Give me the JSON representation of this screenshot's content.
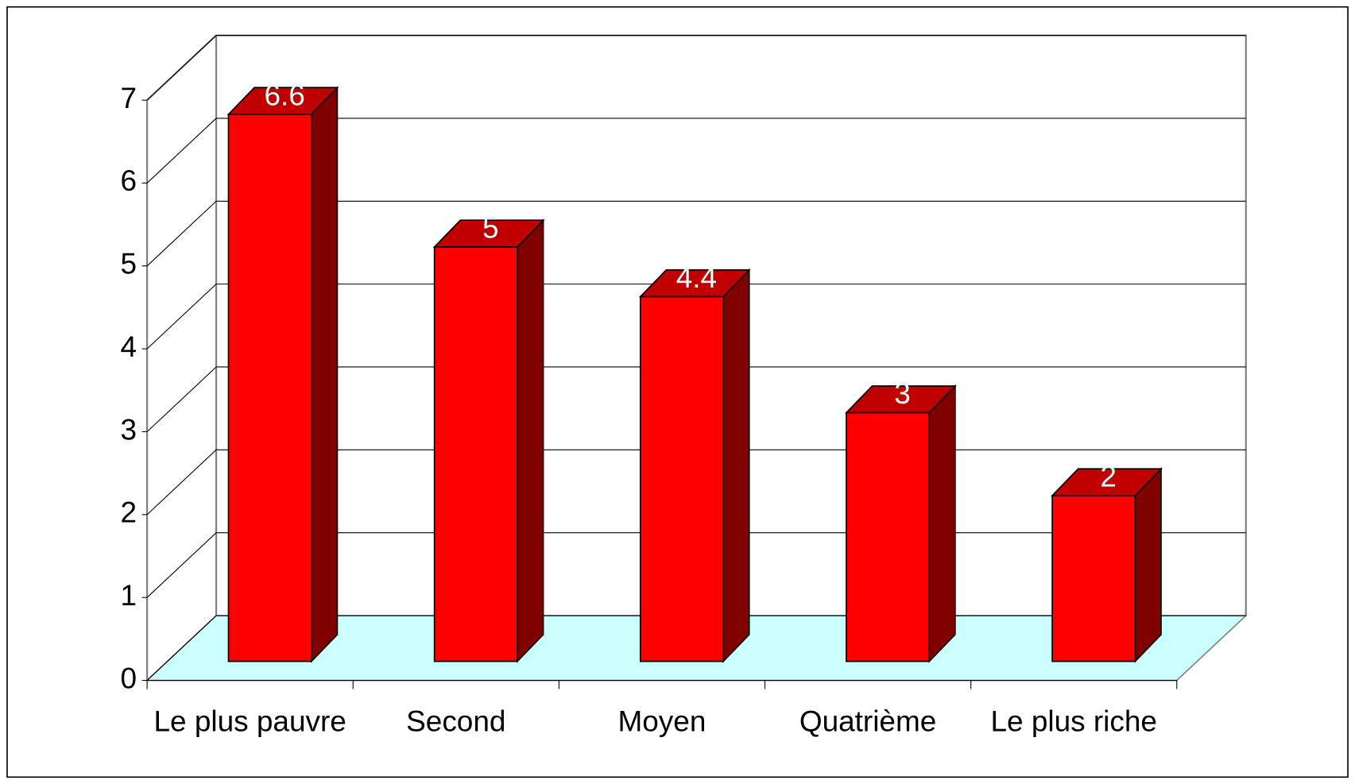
{
  "chart_data": {
    "type": "bar",
    "categories": [
      "Le plus pauvre",
      "Second",
      "Moyen",
      "Quatrième",
      "Le plus riche"
    ],
    "values": [
      6.6,
      5,
      4.4,
      3,
      2
    ],
    "color": "#ff0000",
    "ylim": [
      0,
      7
    ],
    "yticks": [
      0,
      1,
      2,
      3,
      4,
      5,
      6,
      7
    ],
    "grid": true
  }
}
